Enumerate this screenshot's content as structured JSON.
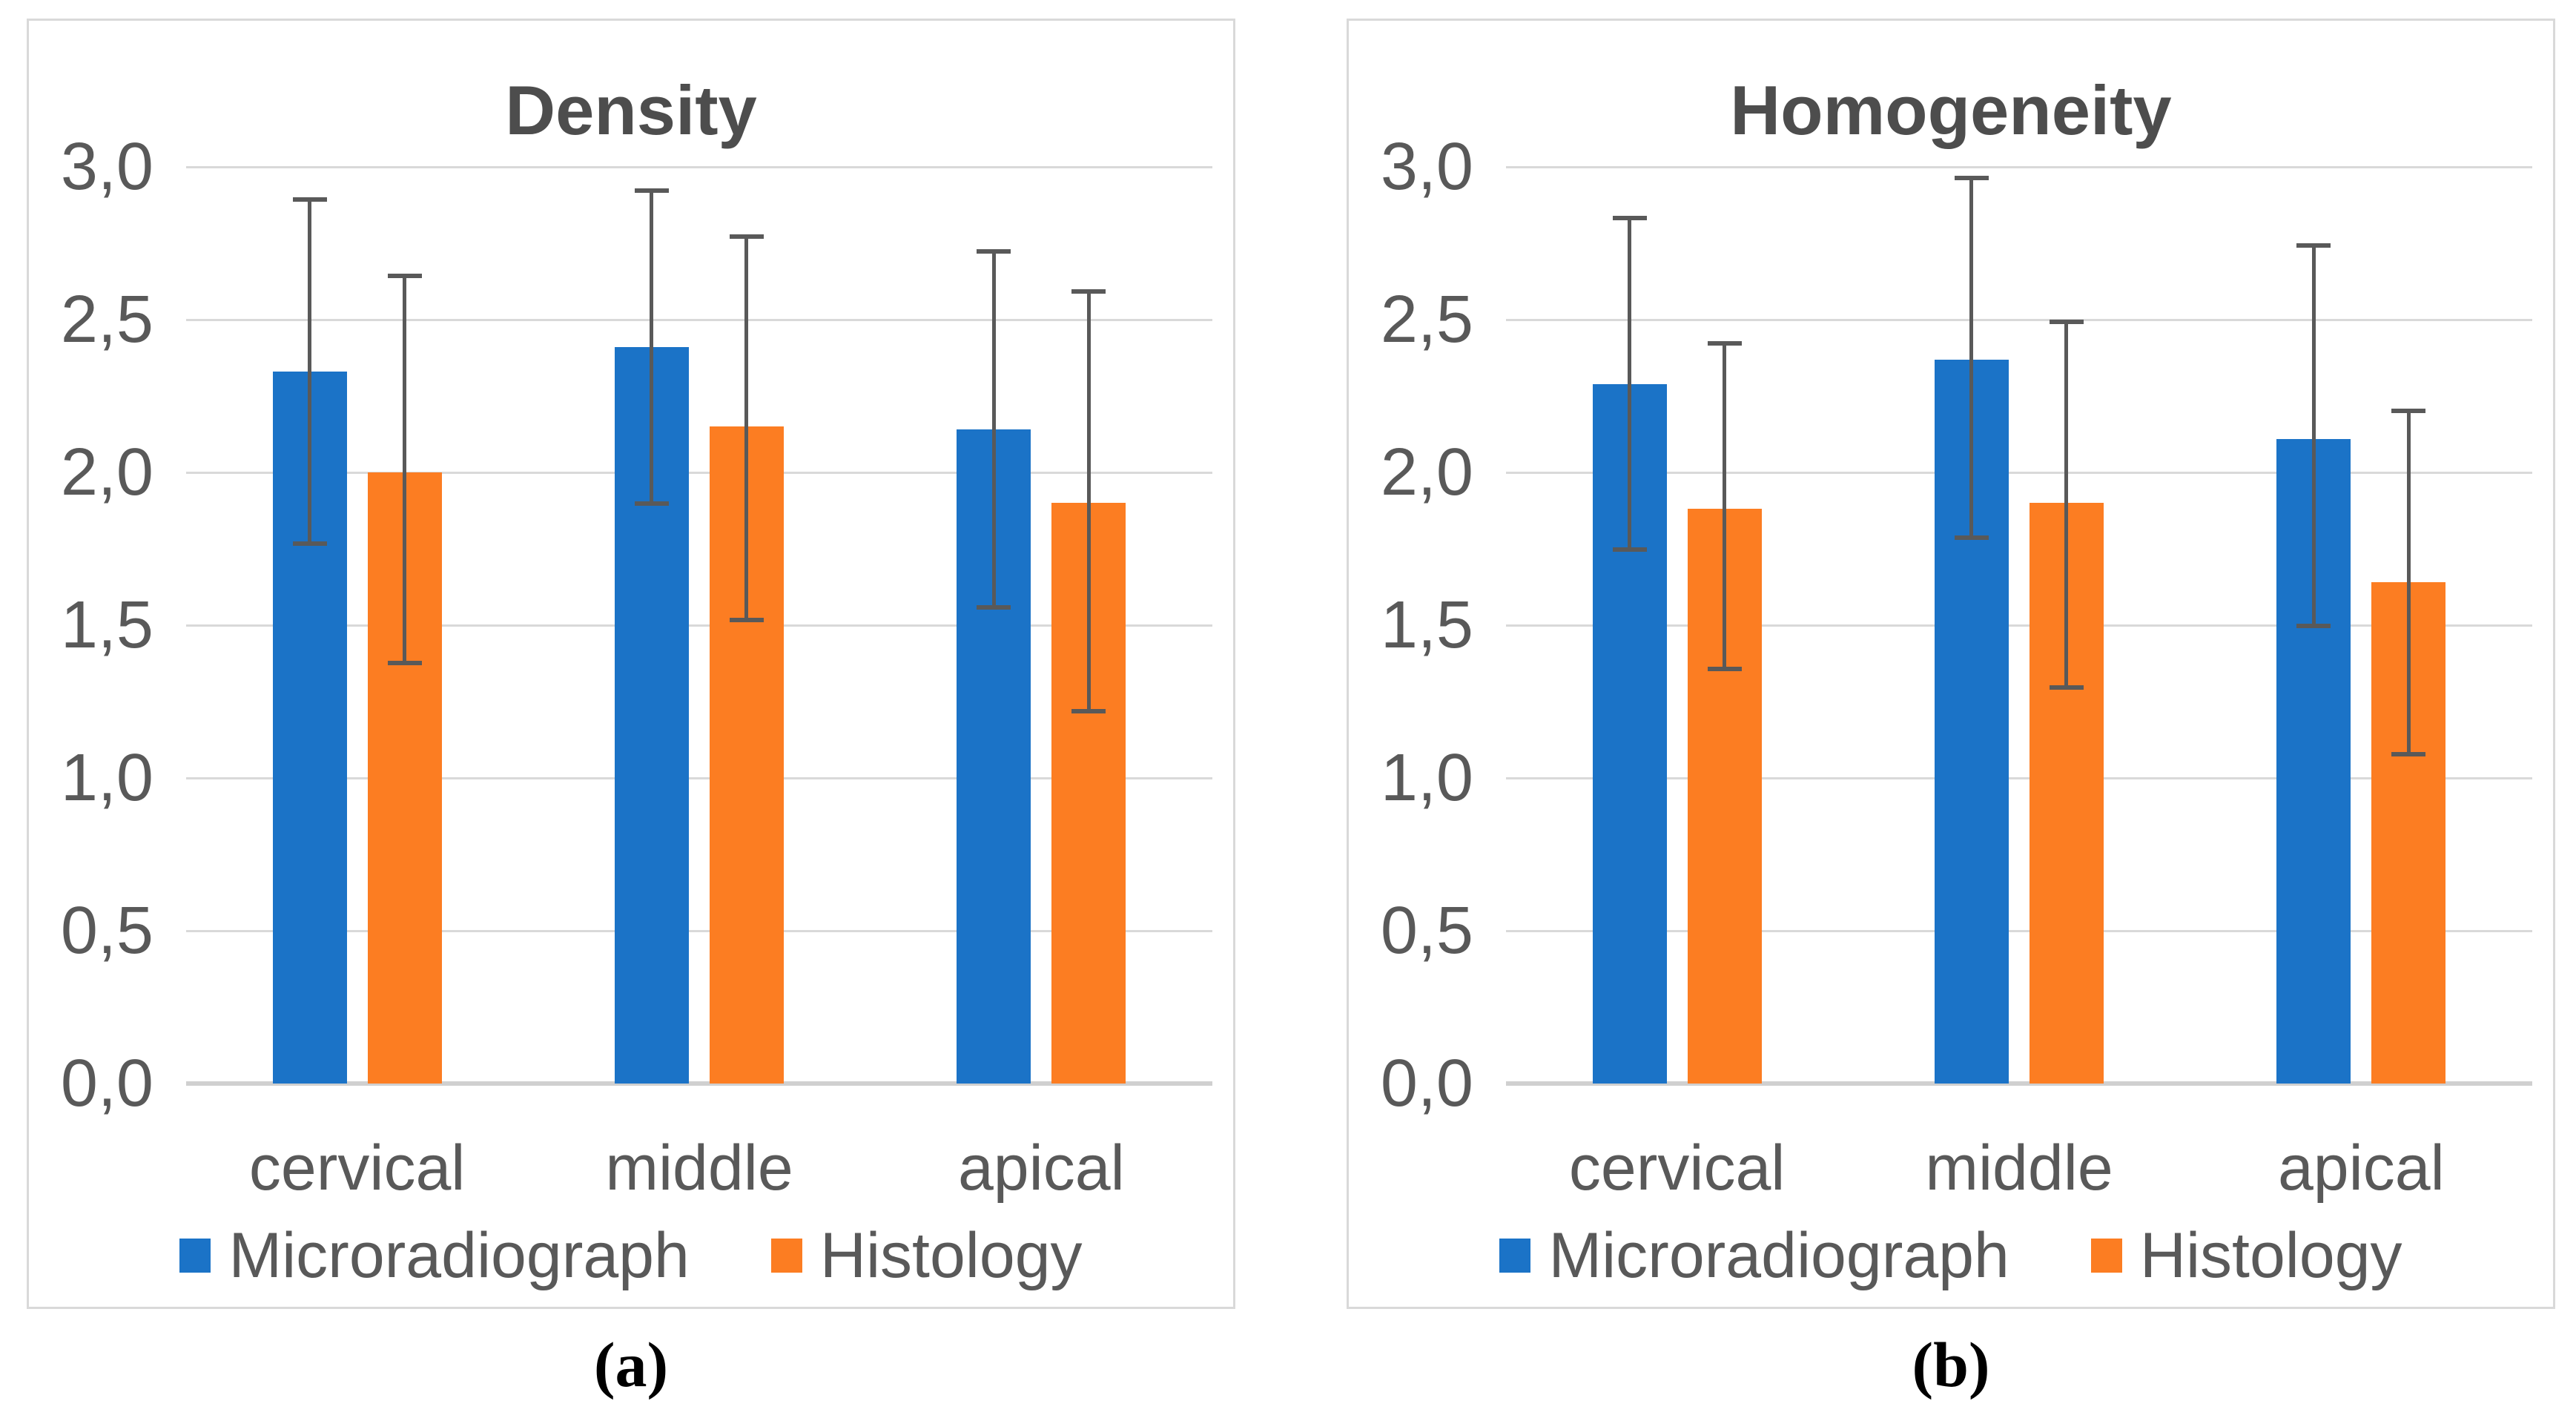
{
  "page": {
    "background": "#FFFFFF"
  },
  "colors": {
    "microradiograph_bar": "#1B73C7",
    "histology_bar": "#FC7D22",
    "error_bar": "#595959",
    "grid_line": "#D9D9D9",
    "axis_baseline": "#D0D0D0",
    "panel_border": "#D9D9D9",
    "chart_text": "#595959",
    "title_text": "#4D4D4D",
    "caption_text": "#000000"
  },
  "chart_data": [
    {
      "type": "bar",
      "title": "Density",
      "caption": "(a)",
      "categories": [
        "cervical",
        "middle",
        "apical"
      ],
      "series": [
        {
          "name": "Microradiograph",
          "color": "#1B73C7",
          "values": [
            2.33,
            2.41,
            2.14
          ],
          "error_low": [
            1.76,
            1.89,
            1.55
          ],
          "error_high": [
            2.9,
            2.93,
            2.73
          ]
        },
        {
          "name": "Histology",
          "color": "#FC7D22",
          "values": [
            2.0,
            2.15,
            1.9
          ],
          "error_low": [
            1.37,
            1.51,
            1.21
          ],
          "error_high": [
            2.65,
            2.78,
            2.6
          ]
        }
      ],
      "ylim": [
        0,
        3.0
      ],
      "ytick_step": 0.5,
      "ytick_labels": [
        "3,0",
        "2,5",
        "2,0",
        "1,5",
        "1,0",
        "0,5",
        "0,0"
      ],
      "grid": true,
      "legend_position": "bottom"
    },
    {
      "type": "bar",
      "title": "Homogeneity",
      "caption": "(b)",
      "categories": [
        "cervical",
        "middle",
        "apical"
      ],
      "series": [
        {
          "name": "Microradiograph",
          "color": "#1B73C7",
          "values": [
            2.29,
            2.37,
            2.11
          ],
          "error_low": [
            1.74,
            1.78,
            1.49
          ],
          "error_high": [
            2.84,
            2.97,
            2.75
          ]
        },
        {
          "name": "Histology",
          "color": "#FC7D22",
          "values": [
            1.88,
            1.9,
            1.64
          ],
          "error_low": [
            1.35,
            1.29,
            1.07
          ],
          "error_high": [
            2.43,
            2.5,
            2.21
          ]
        }
      ],
      "ylim": [
        0,
        3.0
      ],
      "ytick_step": 0.5,
      "ytick_labels": [
        "3,0",
        "2,5",
        "2,0",
        "1,5",
        "1,0",
        "0,5",
        "0,0"
      ],
      "grid": true,
      "legend_position": "bottom"
    }
  ]
}
